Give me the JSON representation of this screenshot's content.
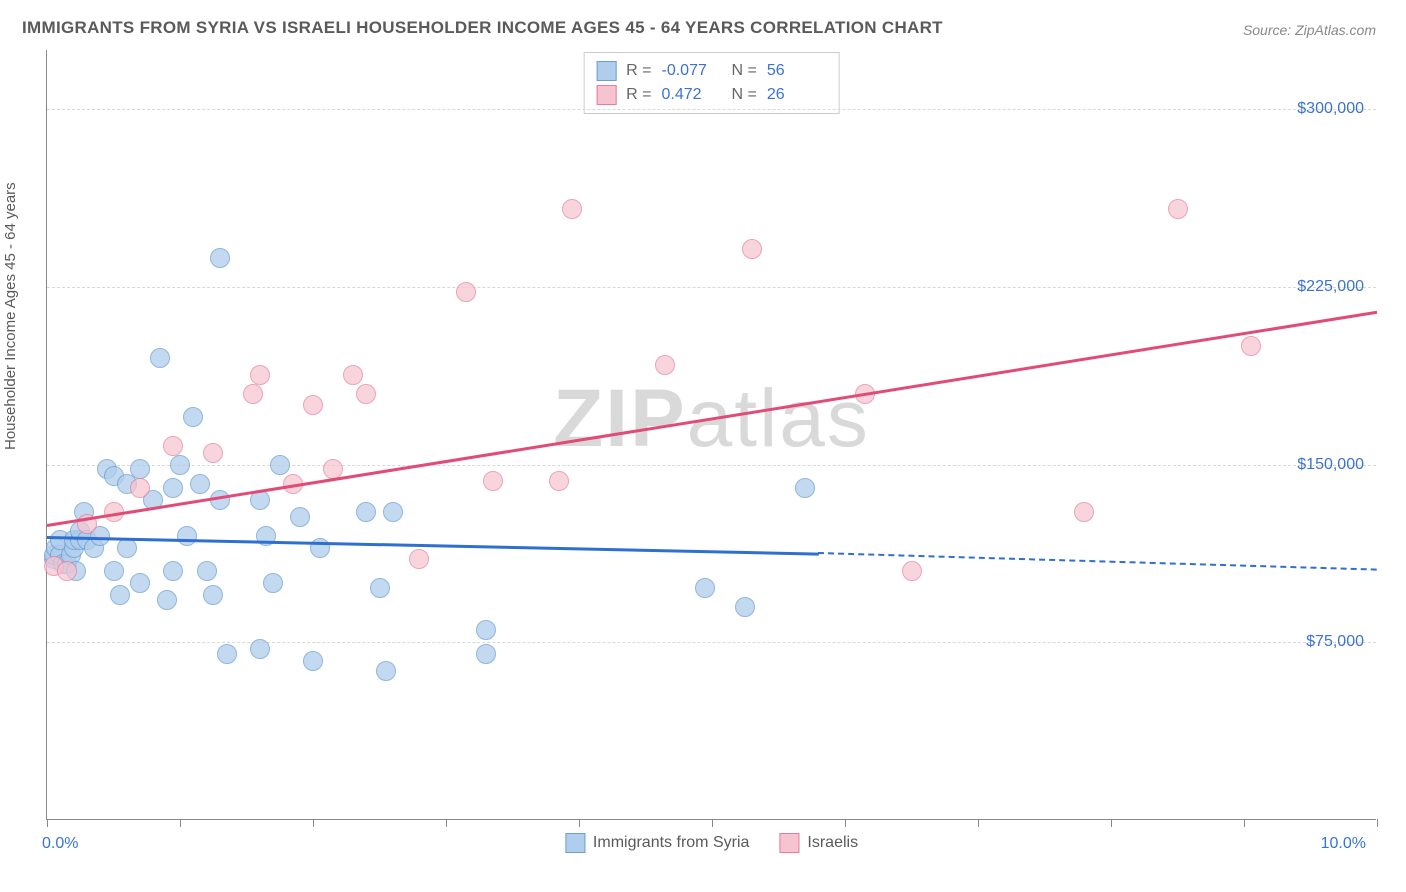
{
  "title": "IMMIGRANTS FROM SYRIA VS ISRAELI HOUSEHOLDER INCOME AGES 45 - 64 YEARS CORRELATION CHART",
  "source": "Source: ZipAtlas.com",
  "ylabel": "Householder Income Ages 45 - 64 years",
  "watermark_part1": "ZIP",
  "watermark_part2": "atlas",
  "chart": {
    "type": "scatter",
    "xlim": [
      0,
      10
    ],
    "ylim": [
      0,
      325000
    ],
    "xtick_positions": [
      0,
      1,
      2,
      3,
      4,
      5,
      6,
      7,
      8,
      9,
      10
    ],
    "xtick_label_left": "0.0%",
    "xtick_label_right": "10.0%",
    "ytick_positions": [
      75000,
      150000,
      225000,
      300000
    ],
    "ytick_labels": [
      "$75,000",
      "$150,000",
      "$225,000",
      "$300,000"
    ],
    "grid_color": "#d8d8d8",
    "background_color": "#ffffff",
    "point_radius": 10,
    "series": [
      {
        "name": "Immigrants from Syria",
        "fill": "#b0cdeb",
        "stroke": "#6a9ed4",
        "fill_opacity": 0.75,
        "points": [
          [
            0.05,
            110000
          ],
          [
            0.05,
            112000
          ],
          [
            0.07,
            115000
          ],
          [
            0.1,
            112000
          ],
          [
            0.1,
            118000
          ],
          [
            0.12,
            108000
          ],
          [
            0.15,
            108000
          ],
          [
            0.18,
            112000
          ],
          [
            0.2,
            115000
          ],
          [
            0.2,
            118000
          ],
          [
            0.22,
            105000
          ],
          [
            0.25,
            118000
          ],
          [
            0.25,
            122000
          ],
          [
            0.28,
            130000
          ],
          [
            0.3,
            118000
          ],
          [
            0.35,
            115000
          ],
          [
            0.4,
            120000
          ],
          [
            0.45,
            148000
          ],
          [
            0.5,
            145000
          ],
          [
            0.5,
            105000
          ],
          [
            0.55,
            95000
          ],
          [
            0.6,
            115000
          ],
          [
            0.6,
            142000
          ],
          [
            0.7,
            148000
          ],
          [
            0.7,
            100000
          ],
          [
            0.8,
            135000
          ],
          [
            0.85,
            195000
          ],
          [
            0.9,
            93000
          ],
          [
            0.95,
            105000
          ],
          [
            0.95,
            140000
          ],
          [
            1.0,
            150000
          ],
          [
            1.05,
            120000
          ],
          [
            1.1,
            170000
          ],
          [
            1.15,
            142000
          ],
          [
            1.2,
            105000
          ],
          [
            1.25,
            95000
          ],
          [
            1.3,
            135000
          ],
          [
            1.3,
            237000
          ],
          [
            1.35,
            70000
          ],
          [
            1.6,
            72000
          ],
          [
            1.6,
            135000
          ],
          [
            1.65,
            120000
          ],
          [
            1.7,
            100000
          ],
          [
            1.75,
            150000
          ],
          [
            1.9,
            128000
          ],
          [
            2.0,
            67000
          ],
          [
            2.05,
            115000
          ],
          [
            2.4,
            130000
          ],
          [
            2.5,
            98000
          ],
          [
            2.55,
            63000
          ],
          [
            2.6,
            130000
          ],
          [
            3.3,
            70000
          ],
          [
            3.3,
            80000
          ],
          [
            4.95,
            98000
          ],
          [
            5.25,
            90000
          ],
          [
            5.7,
            140000
          ]
        ],
        "trend": {
          "x1": 0,
          "y1": 120000,
          "x2": 5.8,
          "y2": 113000,
          "dash_x2": 10,
          "dash_y2": 106000,
          "color": "#2f6fd0"
        }
      },
      {
        "name": "Israelis",
        "fill": "#f6c4d0",
        "stroke": "#e87b9a",
        "fill_opacity": 0.7,
        "points": [
          [
            0.05,
            107000
          ],
          [
            0.15,
            105000
          ],
          [
            0.3,
            125000
          ],
          [
            0.5,
            130000
          ],
          [
            0.7,
            140000
          ],
          [
            0.95,
            158000
          ],
          [
            1.25,
            155000
          ],
          [
            1.55,
            180000
          ],
          [
            1.6,
            188000
          ],
          [
            1.85,
            142000
          ],
          [
            2.0,
            175000
          ],
          [
            2.15,
            148000
          ],
          [
            2.3,
            188000
          ],
          [
            2.4,
            180000
          ],
          [
            2.8,
            110000
          ],
          [
            3.15,
            223000
          ],
          [
            3.35,
            143000
          ],
          [
            3.85,
            143000
          ],
          [
            3.95,
            258000
          ],
          [
            4.65,
            192000
          ],
          [
            5.3,
            241000
          ],
          [
            6.15,
            180000
          ],
          [
            6.5,
            105000
          ],
          [
            7.8,
            130000
          ],
          [
            8.5,
            258000
          ],
          [
            9.05,
            200000
          ]
        ],
        "trend": {
          "x1": 0,
          "y1": 125000,
          "x2": 10,
          "y2": 215000,
          "color": "#e14b76"
        }
      }
    ],
    "stats": [
      {
        "series_idx": 0,
        "R": "-0.077",
        "N": "56"
      },
      {
        "series_idx": 1,
        "R": " 0.472",
        "N": "26"
      }
    ],
    "R_label": "R =",
    "N_label": "N ="
  }
}
